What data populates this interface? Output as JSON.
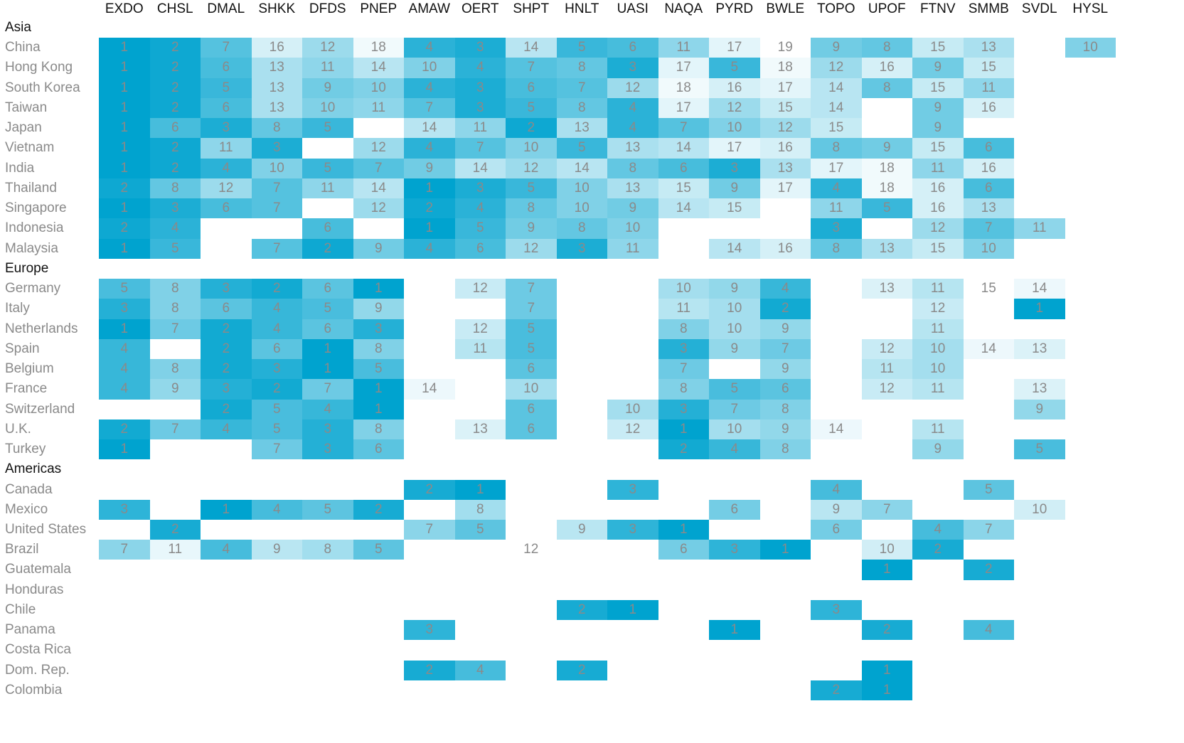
{
  "chart_data": {
    "type": "heatmap",
    "title": "",
    "columns": [
      "EXDO",
      "CHSL",
      "DMAL",
      "SHKK",
      "DFDS",
      "PNEP",
      "AMAW",
      "OERT",
      "SHPT",
      "HNLT",
      "UASI",
      "NAQA",
      "PYRD",
      "BWLE",
      "TOPO",
      "UPOF",
      "FTNV",
      "SMMB",
      "SVDL",
      "HYSL"
    ],
    "color_low": "#00a3cf",
    "color_high": "#ffffff",
    "groups": [
      {
        "name": "Asia",
        "rows": [
          {
            "label": "China",
            "values": [
              1,
              2,
              7,
              16,
              12,
              18,
              4,
              3,
              14,
              5,
              6,
              11,
              17,
              19,
              9,
              8,
              15,
              13,
              null,
              10
            ]
          },
          {
            "label": "Hong Kong",
            "values": [
              1,
              2,
              6,
              13,
              11,
              14,
              10,
              4,
              7,
              8,
              3,
              17,
              5,
              18,
              12,
              16,
              9,
              15,
              null,
              null
            ]
          },
          {
            "label": "South Korea",
            "values": [
              1,
              2,
              5,
              13,
              9,
              10,
              4,
              3,
              6,
              7,
              12,
              18,
              16,
              17,
              14,
              8,
              15,
              11,
              null,
              null
            ]
          },
          {
            "label": "Taiwan",
            "values": [
              1,
              2,
              6,
              13,
              10,
              11,
              7,
              3,
              5,
              8,
              4,
              17,
              12,
              15,
              14,
              null,
              9,
              16,
              null,
              null
            ]
          },
          {
            "label": "Japan",
            "values": [
              1,
              6,
              3,
              8,
              5,
              null,
              14,
              11,
              2,
              13,
              4,
              7,
              10,
              12,
              15,
              null,
              9,
              null,
              null,
              null
            ]
          },
          {
            "label": "Vietnam",
            "values": [
              1,
              2,
              11,
              3,
              null,
              12,
              4,
              7,
              10,
              5,
              13,
              14,
              17,
              16,
              8,
              9,
              15,
              6,
              null,
              null
            ]
          },
          {
            "label": "India",
            "values": [
              1,
              2,
              4,
              10,
              5,
              7,
              9,
              14,
              12,
              14,
              8,
              6,
              3,
              13,
              17,
              18,
              11,
              16,
              null,
              null
            ]
          },
          {
            "label": "Thailand",
            "values": [
              2,
              8,
              12,
              7,
              11,
              14,
              1,
              3,
              5,
              10,
              13,
              15,
              9,
              17,
              4,
              18,
              16,
              6,
              null,
              null
            ]
          },
          {
            "label": "Singapore",
            "values": [
              1,
              3,
              6,
              7,
              null,
              12,
              2,
              4,
              8,
              10,
              9,
              14,
              15,
              null,
              11,
              5,
              16,
              13,
              null,
              null
            ]
          },
          {
            "label": "Indonesia",
            "values": [
              2,
              4,
              null,
              null,
              6,
              null,
              1,
              5,
              9,
              8,
              10,
              null,
              null,
              null,
              3,
              null,
              12,
              7,
              11,
              null
            ]
          },
          {
            "label": "Malaysia",
            "values": [
              1,
              5,
              null,
              7,
              2,
              9,
              4,
              6,
              12,
              3,
              11,
              null,
              14,
              16,
              8,
              13,
              15,
              10,
              null,
              null
            ]
          }
        ]
      },
      {
        "name": "Europe",
        "rows": [
          {
            "label": "Germany",
            "values": [
              5,
              8,
              3,
              2,
              6,
              1,
              null,
              12,
              7,
              null,
              null,
              10,
              9,
              4,
              null,
              13,
              11,
              15,
              14,
              null
            ]
          },
          {
            "label": "Italy",
            "values": [
              3,
              8,
              6,
              4,
              5,
              9,
              null,
              null,
              7,
              null,
              null,
              11,
              10,
              2,
              null,
              null,
              12,
              null,
              1,
              null
            ]
          },
          {
            "label": "Netherlands",
            "values": [
              1,
              7,
              2,
              4,
              6,
              3,
              null,
              12,
              5,
              null,
              null,
              8,
              10,
              9,
              null,
              null,
              11,
              null,
              null,
              null
            ]
          },
          {
            "label": "Spain",
            "values": [
              4,
              null,
              2,
              6,
              1,
              8,
              null,
              11,
              5,
              null,
              null,
              3,
              9,
              7,
              null,
              12,
              10,
              14,
              13,
              null
            ]
          },
          {
            "label": "Belgium",
            "values": [
              4,
              8,
              2,
              3,
              1,
              5,
              null,
              null,
              6,
              null,
              null,
              7,
              null,
              9,
              null,
              11,
              10,
              null,
              null,
              null
            ]
          },
          {
            "label": "France",
            "values": [
              4,
              9,
              3,
              2,
              7,
              1,
              14,
              null,
              10,
              null,
              null,
              8,
              5,
              6,
              null,
              12,
              11,
              null,
              13,
              null
            ]
          },
          {
            "label": "Switzerland",
            "values": [
              null,
              null,
              2,
              5,
              4,
              1,
              null,
              null,
              6,
              null,
              10,
              3,
              7,
              8,
              null,
              null,
              null,
              null,
              9,
              null
            ]
          },
          {
            "label": "U.K.",
            "values": [
              2,
              7,
              4,
              5,
              3,
              8,
              null,
              13,
              6,
              null,
              12,
              1,
              10,
              9,
              14,
              null,
              11,
              null,
              null,
              null
            ]
          },
          {
            "label": "Turkey",
            "values": [
              1,
              null,
              null,
              7,
              3,
              6,
              null,
              null,
              null,
              null,
              null,
              2,
              4,
              8,
              null,
              null,
              9,
              null,
              5,
              null
            ]
          }
        ]
      },
      {
        "name": "Americas",
        "rows": [
          {
            "label": "Canada",
            "values": [
              null,
              null,
              null,
              null,
              null,
              null,
              2,
              1,
              null,
              null,
              3,
              null,
              null,
              null,
              4,
              null,
              null,
              5,
              null,
              null
            ]
          },
          {
            "label": "Mexico",
            "values": [
              3,
              null,
              1,
              4,
              5,
              2,
              null,
              8,
              null,
              null,
              null,
              null,
              6,
              null,
              9,
              7,
              null,
              null,
              10,
              null
            ]
          },
          {
            "label": "United States",
            "values": [
              null,
              2,
              null,
              null,
              null,
              null,
              7,
              5,
              null,
              9,
              3,
              1,
              null,
              null,
              6,
              null,
              4,
              7,
              null,
              null
            ]
          },
          {
            "label": "Brazil",
            "values": [
              7,
              11,
              4,
              9,
              8,
              5,
              null,
              null,
              12,
              null,
              null,
              6,
              3,
              1,
              null,
              10,
              2,
              null,
              null,
              null
            ]
          },
          {
            "label": "Guatemala",
            "values": [
              null,
              null,
              null,
              null,
              null,
              null,
              null,
              null,
              null,
              null,
              null,
              null,
              null,
              null,
              null,
              1,
              null,
              2,
              null,
              null
            ]
          },
          {
            "label": "Honduras",
            "values": [
              null,
              null,
              null,
              null,
              null,
              null,
              null,
              null,
              null,
              null,
              null,
              null,
              null,
              null,
              null,
              null,
              null,
              null,
              null,
              null
            ]
          },
          {
            "label": "Chile",
            "values": [
              null,
              null,
              null,
              null,
              null,
              null,
              null,
              null,
              null,
              2,
              1,
              null,
              null,
              null,
              3,
              null,
              null,
              null,
              null,
              null
            ]
          },
          {
            "label": "Panama",
            "values": [
              null,
              null,
              null,
              null,
              null,
              null,
              3,
              null,
              null,
              null,
              null,
              null,
              1,
              null,
              null,
              2,
              null,
              4,
              null,
              null
            ]
          },
          {
            "label": "Costa Rica",
            "values": [
              null,
              null,
              null,
              null,
              null,
              null,
              null,
              null,
              null,
              null,
              null,
              null,
              null,
              null,
              null,
              null,
              null,
              null,
              null,
              null
            ]
          },
          {
            "label": "Dom. Rep.",
            "values": [
              null,
              null,
              null,
              null,
              null,
              null,
              2,
              4,
              null,
              2,
              null,
              null,
              null,
              null,
              null,
              1,
              null,
              null,
              null,
              null
            ]
          },
          {
            "label": "Colombia",
            "values": [
              null,
              null,
              null,
              null,
              null,
              null,
              null,
              null,
              null,
              null,
              null,
              null,
              null,
              null,
              2,
              1,
              null,
              null,
              null,
              null
            ]
          }
        ]
      }
    ]
  }
}
